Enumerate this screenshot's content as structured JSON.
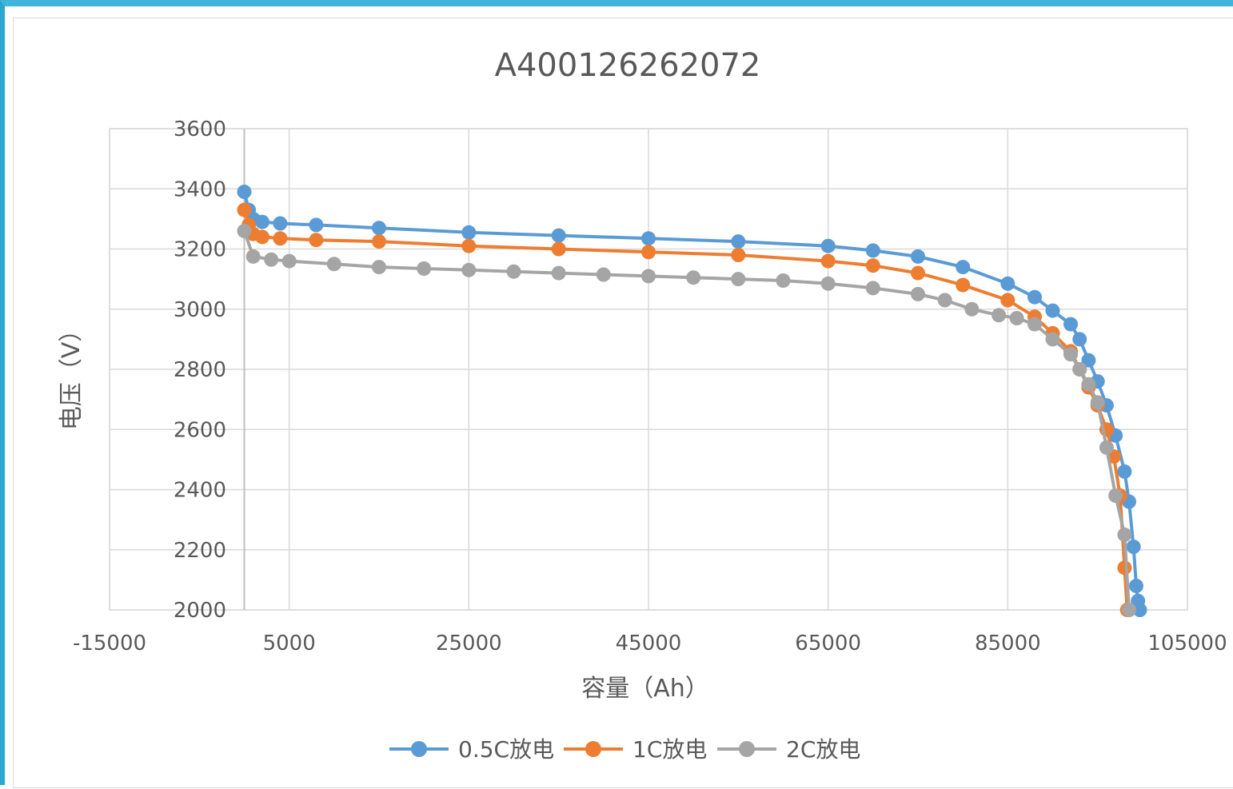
{
  "chart_data": {
    "type": "scatter",
    "title": "A400126262072",
    "xlabel": "容量（Ah）",
    "ylabel": "电压（V）",
    "xlim": [
      -15000,
      105000
    ],
    "ylim": [
      2000,
      3600
    ],
    "xticks": [
      "-15000",
      "5000",
      "25000",
      "45000",
      "65000",
      "85000",
      "105000"
    ],
    "yticks": [
      "2000",
      "2200",
      "2400",
      "2600",
      "2800",
      "3000",
      "3200",
      "3400",
      "3600"
    ],
    "grid": true,
    "legend": "bottom",
    "series": [
      {
        "name": "0.5C放电",
        "color": "#5b9bd5",
        "x": [
          0,
          500,
          1000,
          2000,
          4000,
          8000,
          15000,
          25000,
          35000,
          45000,
          55000,
          65000,
          70000,
          75000,
          80000,
          85000,
          88000,
          90000,
          92000,
          93000,
          94000,
          95000,
          96000,
          97000,
          98000,
          98500,
          99000,
          99300,
          99500,
          99700
        ],
        "y": [
          3390,
          3330,
          3300,
          3290,
          3285,
          3280,
          3270,
          3255,
          3245,
          3235,
          3225,
          3210,
          3195,
          3175,
          3140,
          3085,
          3040,
          2995,
          2950,
          2900,
          2830,
          2760,
          2680,
          2580,
          2460,
          2360,
          2210,
          2080,
          2030,
          2000
        ]
      },
      {
        "name": "1C放电",
        "color": "#ed7d31",
        "x": [
          0,
          500,
          1000,
          2000,
          4000,
          8000,
          15000,
          25000,
          35000,
          45000,
          55000,
          65000,
          70000,
          75000,
          80000,
          85000,
          88000,
          90000,
          92000,
          93000,
          94000,
          95000,
          96000,
          96800,
          97500,
          98000,
          98300
        ],
        "y": [
          3330,
          3280,
          3250,
          3240,
          3235,
          3230,
          3225,
          3210,
          3200,
          3190,
          3180,
          3160,
          3145,
          3120,
          3080,
          3030,
          2975,
          2920,
          2860,
          2800,
          2740,
          2680,
          2600,
          2510,
          2380,
          2140,
          2000
        ]
      },
      {
        "name": "2C放电",
        "color": "#a5a5a5",
        "x": [
          0,
          1000,
          3000,
          5000,
          10000,
          15000,
          20000,
          25000,
          30000,
          35000,
          40000,
          45000,
          50000,
          55000,
          60000,
          65000,
          70000,
          75000,
          78000,
          81000,
          84000,
          86000,
          88000,
          90000,
          92000,
          93000,
          94000,
          95000,
          96000,
          97000,
          98000,
          98500
        ],
        "y": [
          3260,
          3175,
          3165,
          3160,
          3150,
          3140,
          3135,
          3130,
          3125,
          3120,
          3115,
          3110,
          3105,
          3100,
          3095,
          3085,
          3070,
          3050,
          3030,
          3000,
          2980,
          2970,
          2950,
          2900,
          2850,
          2800,
          2750,
          2690,
          2540,
          2380,
          2250,
          2000
        ]
      }
    ]
  }
}
